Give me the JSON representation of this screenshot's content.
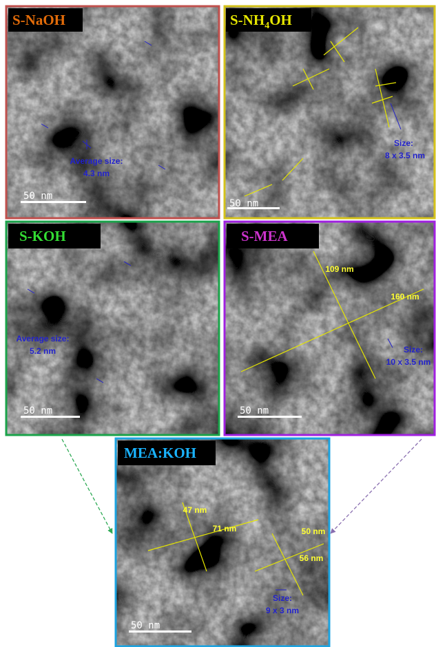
{
  "panels": [
    {
      "label": "S-NaOH",
      "annotations": [
        "Average size:",
        "4.3 nm"
      ],
      "scale_bar": "50 nm"
    },
    {
      "label": {
        "base": "S-NH",
        "subscript": "4",
        "suffix": "OH"
      },
      "annotations": [
        "Size:",
        "8 x 3.5 nm"
      ],
      "scale_bar": "50 nm"
    },
    {
      "label": "S-KOH",
      "annotations": [
        "Average size:",
        "5.2 nm"
      ],
      "scale_bar": "50 nm"
    },
    {
      "label": "S-MEA",
      "annotations": [
        "109 nm",
        "160 nm",
        "Size:",
        "10 x 3.5 nm"
      ],
      "scale_bar": "50 nm"
    },
    {
      "label": "MEA:KOH",
      "annotations": [
        "47 nm",
        "71 nm",
        "50 nm",
        "56 nm",
        "Size:",
        "9 x 3 nm"
      ],
      "scale_bar": "50 nm"
    }
  ]
}
